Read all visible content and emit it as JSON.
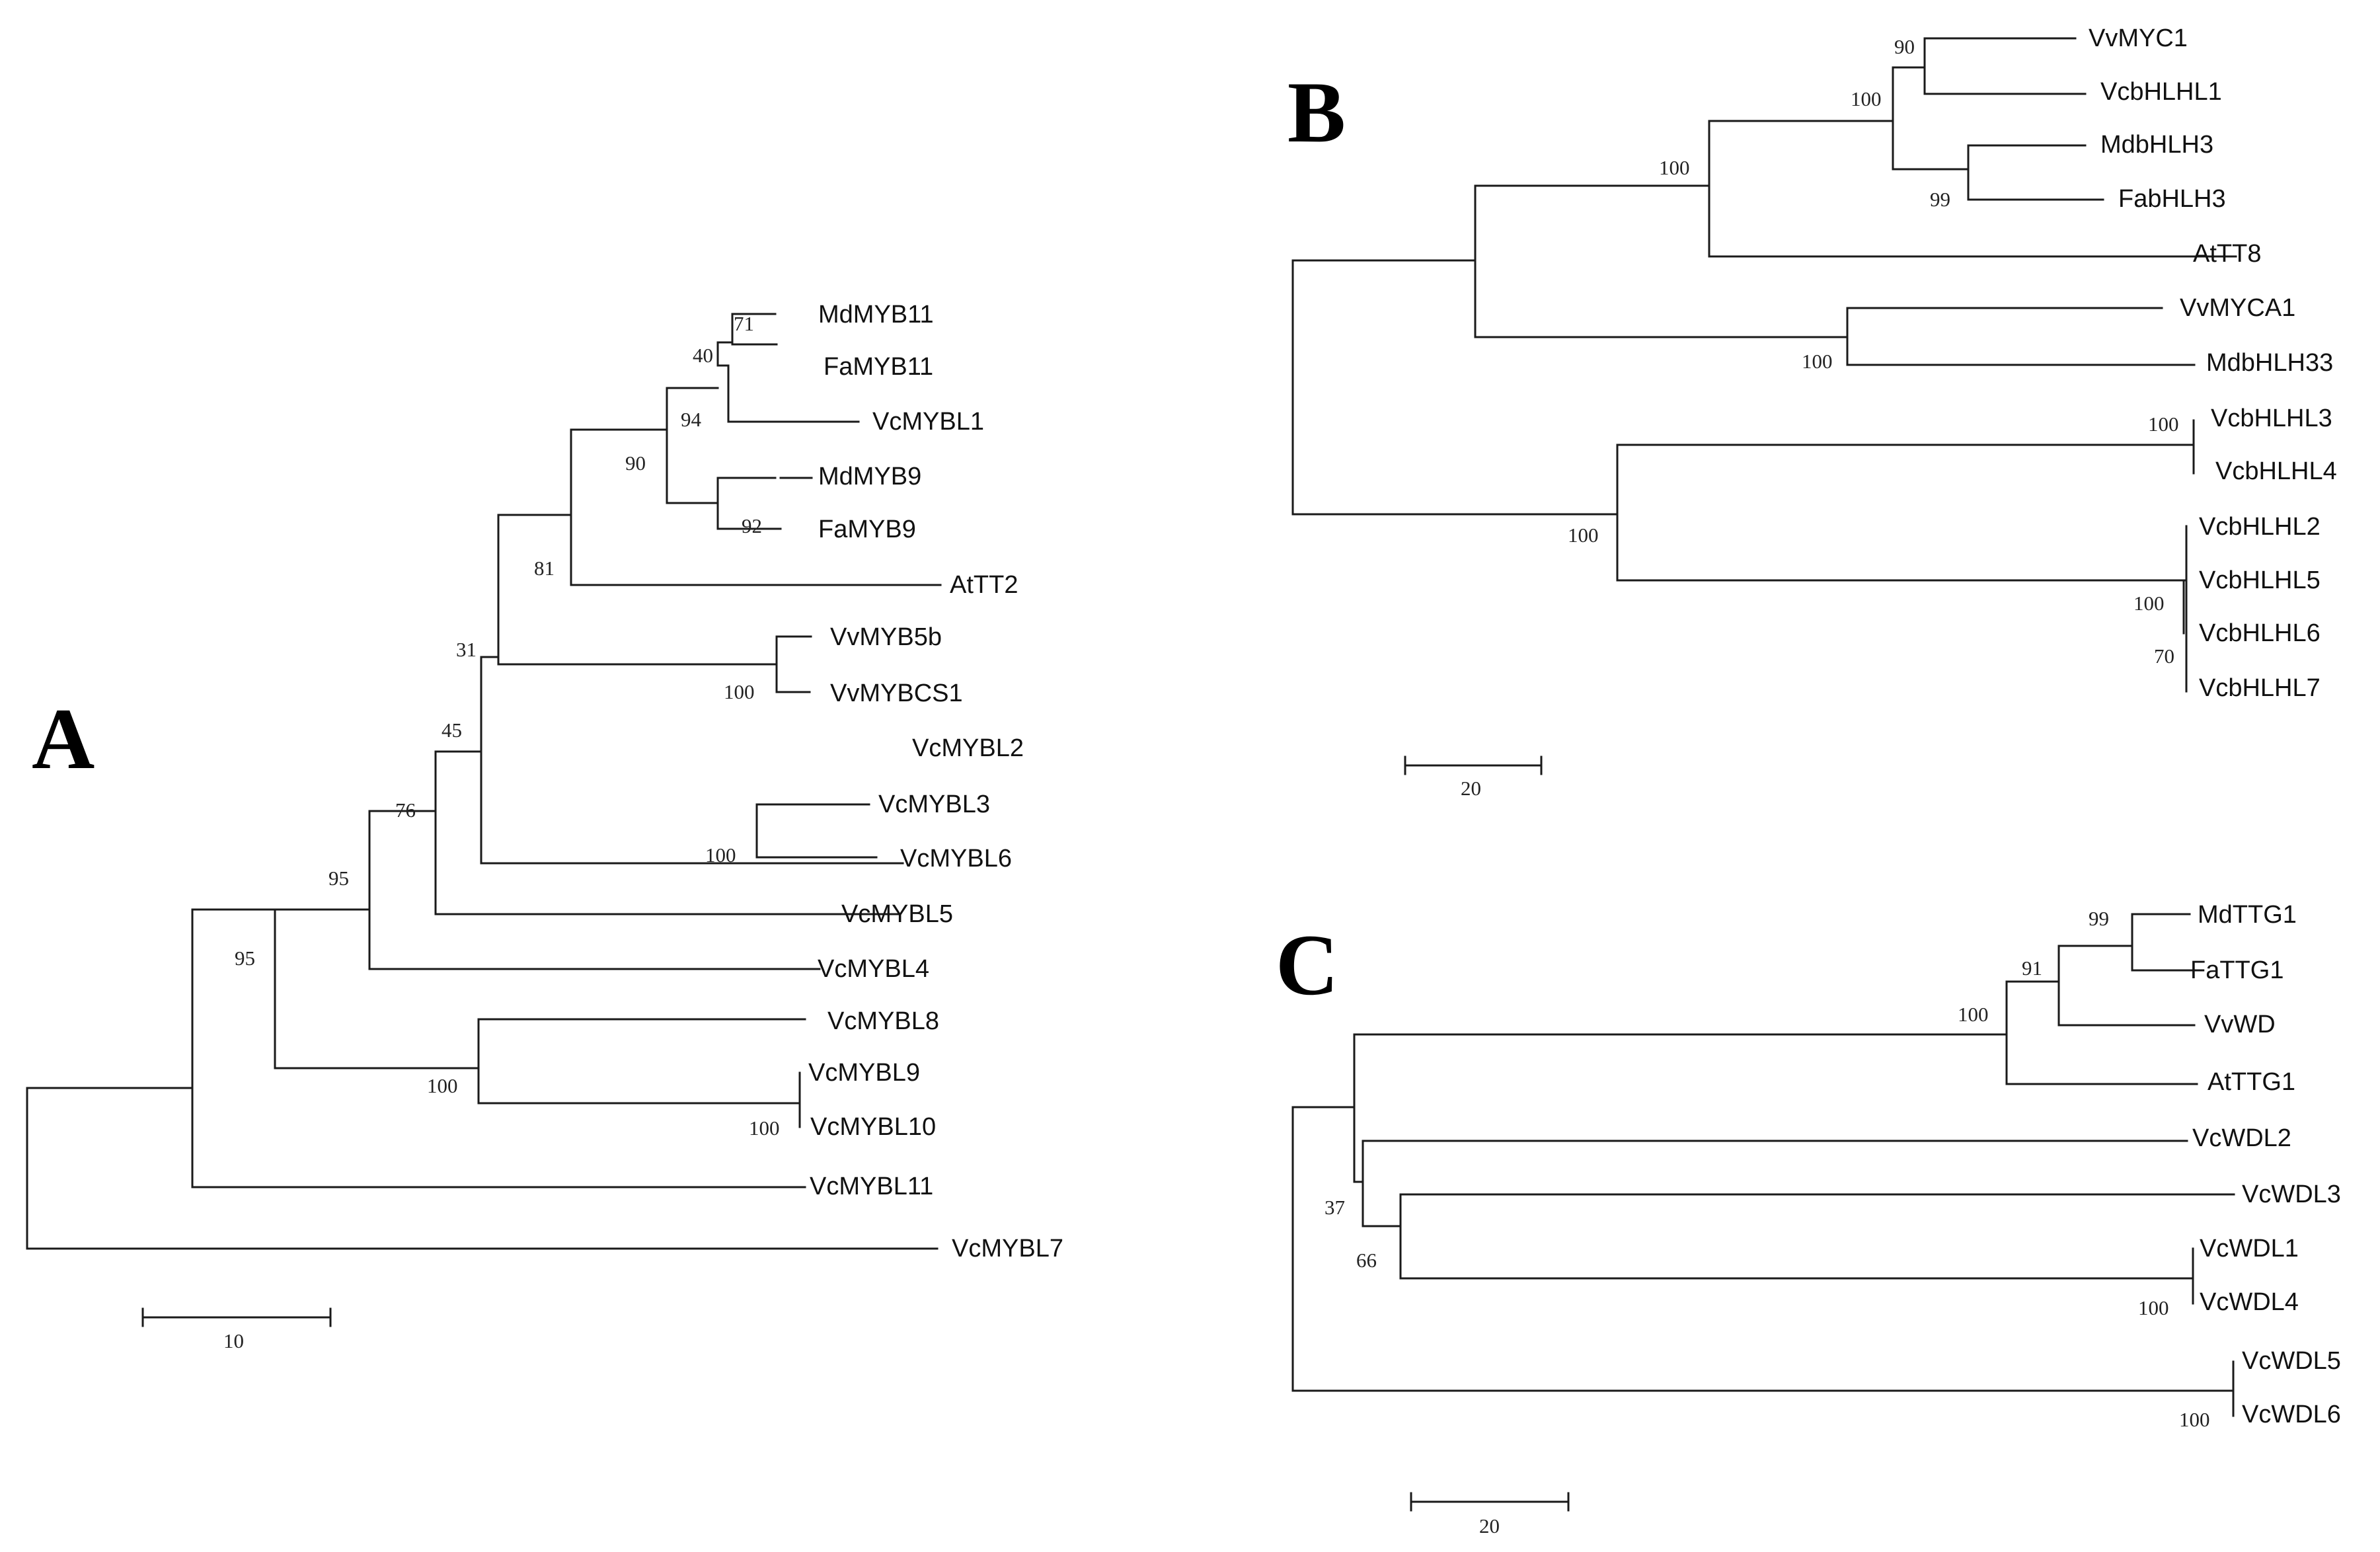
{
  "panels": {
    "a": {
      "label": "A",
      "scale_label": "10",
      "leaves": {
        "mdmyb11": "MdMYB11",
        "famyb11": "FaMYB11",
        "vcmybl1": "VcMYBL1",
        "mdmyb9": "MdMYB9",
        "famyb9": "FaMYB9",
        "attt2": "AtTT2",
        "vvmyb5b": "VvMYB5b",
        "vvmybcs1": "VvMYBCS1",
        "vcmybl2": "VcMYBL2",
        "vcmybl3": "VcMYBL3",
        "vcmybl6": "VcMYBL6",
        "vcmybl5": "VcMYBL5",
        "vcmybl4": "VcMYBL4",
        "vcmybl8": "VcMYBL8",
        "vcmybl9": "VcMYBL9",
        "vcmybl10": "VcMYBL10",
        "vcmybl11": "VcMYBL11",
        "vcmybl7": "VcMYBL7"
      },
      "bootstraps": {
        "n71": "71",
        "n40": "40",
        "n94": "94",
        "n92": "92",
        "n90": "90",
        "n81": "81",
        "n100a": "100",
        "n31": "31",
        "n45": "45",
        "n100b": "100",
        "n76": "76",
        "n95a": "95",
        "n95b": "95",
        "n100c": "100",
        "n100d": "100"
      }
    },
    "b": {
      "label": "B",
      "scale_label": "20",
      "leaves": {
        "vvmyc1": "VvMYC1",
        "vcbhlhl1": "VcbHLHL1",
        "mdbhlh3": "MdbHLH3",
        "fabhlh3": "FabHLH3",
        "attt8": "AtTT8",
        "vvmyca1": "VvMYCA1",
        "mdbhlh33": "MdbHLH33",
        "vcbhlhl3": "VcbHLHL3",
        "vcbhlhl4": "VcbHLHL4",
        "vcbhlhl2": "VcbHLHL2",
        "vcbhlhl5": "VcbHLHL5",
        "vcbhlhl6": "VcbHLHL6",
        "vcbhlhl7": "VcbHLHL7"
      },
      "bootstraps": {
        "n90": "90",
        "n100a": "100",
        "n99": "99",
        "n100b": "100",
        "n100c": "100",
        "n100d": "100",
        "n100e": "100",
        "n100f": "100",
        "n70": "70"
      }
    },
    "c": {
      "label": "C",
      "scale_label": "20",
      "leaves": {
        "mdttg1": "MdTTG1",
        "fattg1": "FaTTG1",
        "vvwd": "VvWD",
        "atttg1": "AtTTG1",
        "vcwdl2": "VcWDL2",
        "vcwdl3": "VcWDL3",
        "vcwdl1": "VcWDL1",
        "vcwdl4": "VcWDL4",
        "vcwdl5": "VcWDL5",
        "vcwdl6": "VcWDL6"
      },
      "bootstraps": {
        "n99": "99",
        "n91": "91",
        "n100a": "100",
        "n37": "37",
        "n66": "66",
        "n100b": "100",
        "n100c": "100"
      }
    }
  }
}
